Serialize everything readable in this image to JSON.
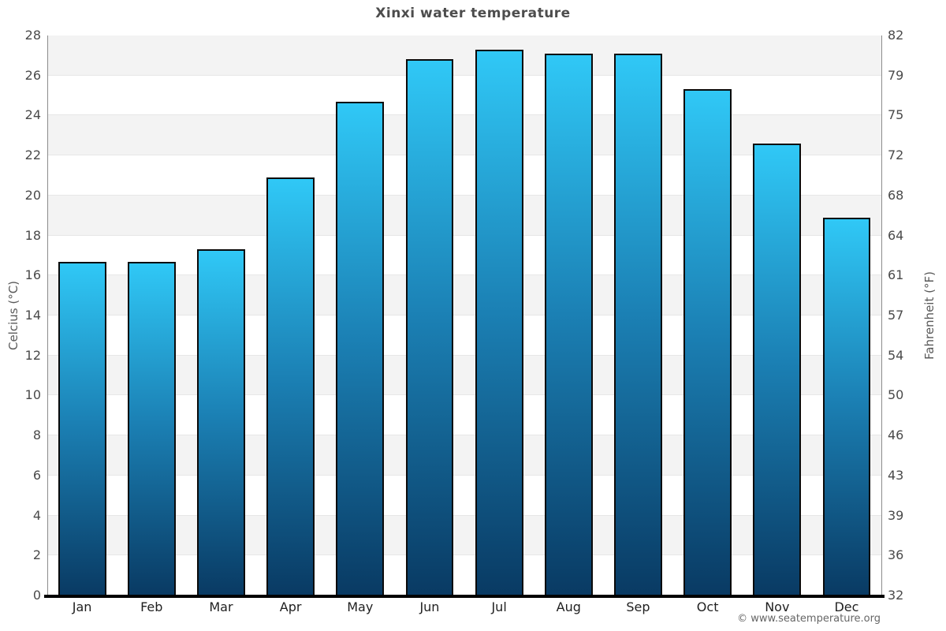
{
  "chart_data": {
    "type": "bar",
    "title": "Xinxi water temperature",
    "categories": [
      "Jan",
      "Feb",
      "Mar",
      "Apr",
      "May",
      "Jun",
      "Jul",
      "Aug",
      "Sep",
      "Oct",
      "Nov",
      "Dec"
    ],
    "values": [
      16.7,
      16.7,
      17.3,
      20.9,
      24.7,
      26.8,
      27.3,
      27.1,
      27.1,
      25.3,
      22.6,
      18.9
    ],
    "ylabel_left": "Celcius (°C)",
    "ylabel_right": "Fahrenheit (°F)",
    "ylim": [
      0,
      28
    ],
    "ytick_step": 2,
    "left_tick_labels": [
      "0",
      "2",
      "4",
      "6",
      "8",
      "10",
      "12",
      "14",
      "16",
      "18",
      "20",
      "22",
      "24",
      "26",
      "28"
    ],
    "right_tick_labels": [
      "32",
      "36",
      "39",
      "43",
      "46",
      "50",
      "54",
      "57",
      "61",
      "64",
      "68",
      "72",
      "75",
      "79",
      "82"
    ],
    "grid": "alternating horizontal bands, legend none"
  },
  "style": {
    "bar_gradient_top": "#30c8f6",
    "bar_gradient_mid": "#1b80b4",
    "bar_gradient_bottom": "#093a63",
    "bar_border": "#0a0a0a",
    "band_fill": "#f3f3f3",
    "band_line": "#e7e7e7",
    "spine": "#8c8c8c",
    "bottom_axis": "#000000",
    "title_color": "#4d4d4d",
    "tick_color": "#4a4a4a",
    "month_color": "#1f1f1f",
    "axis_title_color": "#595959"
  },
  "footer": {
    "credit": "© www.seatemperature.org"
  }
}
